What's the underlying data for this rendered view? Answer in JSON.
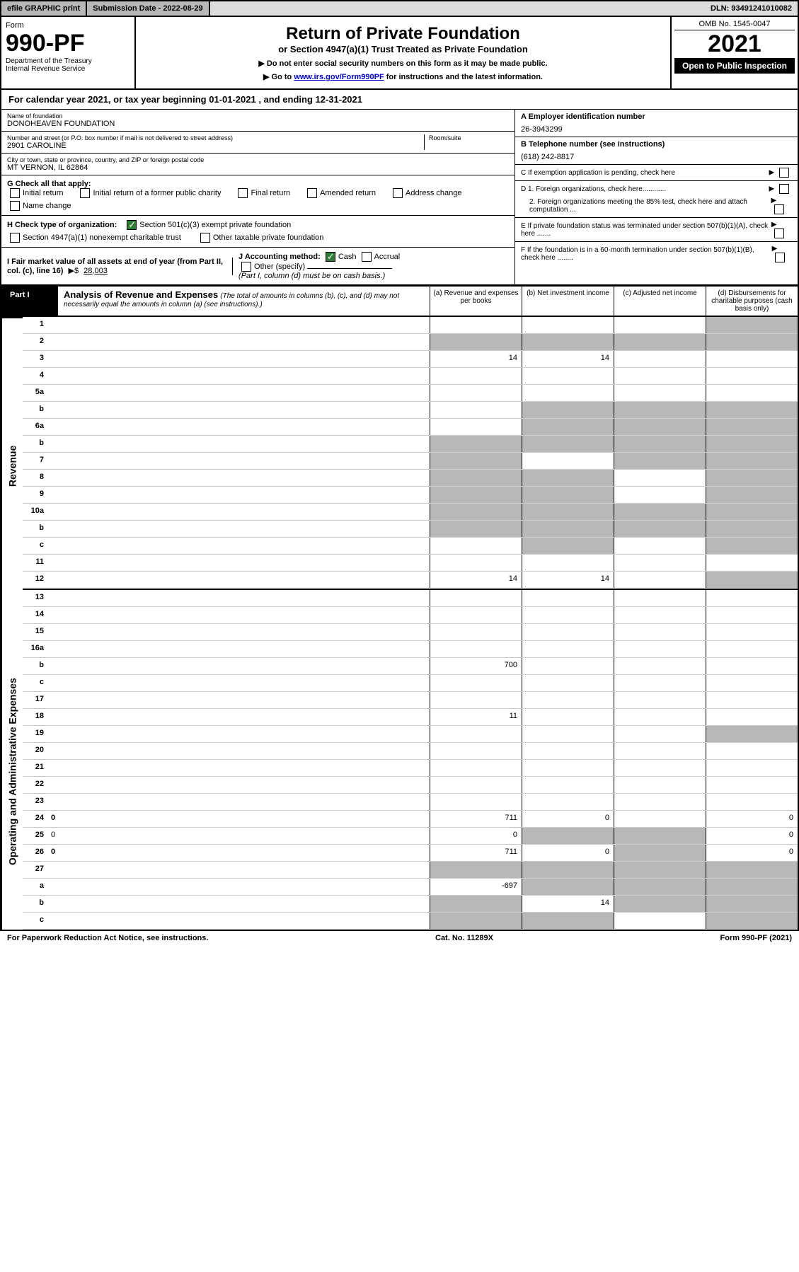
{
  "topbar": {
    "efile": "efile GRAPHIC print",
    "subdate_label": "Submission Date - 2022-08-29",
    "dln": "DLN: 93491241010082"
  },
  "header": {
    "form_word": "Form",
    "form_no": "990-PF",
    "dept": "Department of the Treasury\nInternal Revenue Service",
    "title": "Return of Private Foundation",
    "subtitle": "or Section 4947(a)(1) Trust Treated as Private Foundation",
    "instr1": "▶ Do not enter social security numbers on this form as it may be made public.",
    "instr2_pre": "▶ Go to ",
    "instr2_link": "www.irs.gov/Form990PF",
    "instr2_post": " for instructions and the latest information.",
    "omb": "OMB No. 1545-0047",
    "year": "2021",
    "open": "Open to Public Inspection"
  },
  "calyear": "For calendar year 2021, or tax year beginning 01-01-2021           , and ending 12-31-2021",
  "foundation": {
    "name_label": "Name of foundation",
    "name": "DONOHEAVEN FOUNDATION",
    "addr_label": "Number and street (or P.O. box number if mail is not delivered to street address)",
    "addr": "2901 CAROLINE",
    "room_label": "Room/suite",
    "city_label": "City or town, state or province, country, and ZIP or foreign postal code",
    "city": "MT VERNON, IL  62864",
    "ein_label": "A Employer identification number",
    "ein": "26-3943299",
    "phone_label": "B Telephone number (see instructions)",
    "phone": "(618) 242-8817",
    "c_label": "C If exemption application is pending, check here",
    "d1": "D 1. Foreign organizations, check here............",
    "d2": "2. Foreign organizations meeting the 85% test, check here and attach computation ...",
    "e_label": "E  If private foundation status was terminated under section 507(b)(1)(A), check here .......",
    "f_label": "F  If the foundation is in a 60-month termination under section 507(b)(1)(B), check here ........"
  },
  "g": {
    "label": "G Check all that apply:",
    "opts": [
      "Initial return",
      "Initial return of a former public charity",
      "Final return",
      "Amended return",
      "Address change",
      "Name change"
    ]
  },
  "h": {
    "label": "H Check type of organization:",
    "opt1": "Section 501(c)(3) exempt private foundation",
    "opt2": "Section 4947(a)(1) nonexempt charitable trust",
    "opt3": "Other taxable private foundation"
  },
  "i": {
    "label": "I Fair market value of all assets at end of year (from Part II, col. (c), line 16)",
    "arrow": "▶$",
    "value": "28,003"
  },
  "j": {
    "label": "J Accounting method:",
    "cash": "Cash",
    "accrual": "Accrual",
    "other": "Other (specify)",
    "note": "(Part I, column (d) must be on cash basis.)"
  },
  "part1": {
    "label": "Part I",
    "title": "Analysis of Revenue and Expenses",
    "sub": "(The total of amounts in columns (b), (c), and (d) may not necessarily equal the amounts in column (a) (see instructions).)",
    "col_a": "(a)   Revenue and expenses per books",
    "col_b": "(b)   Net investment income",
    "col_c": "(c)  Adjusted net income",
    "col_d": "(d)  Disbursements for charitable purposes (cash basis only)"
  },
  "side_labels": {
    "revenue": "Revenue",
    "expenses": "Operating and Administrative Expenses"
  },
  "rows": [
    {
      "n": "1",
      "d": "",
      "a": "",
      "b": "",
      "c": "",
      "sd": true
    },
    {
      "n": "2",
      "d": "",
      "a": "",
      "b": "",
      "c": "",
      "sd": true,
      "shade_all": true
    },
    {
      "n": "3",
      "d": "",
      "a": "14",
      "b": "14",
      "c": ""
    },
    {
      "n": "4",
      "d": "",
      "a": "",
      "b": "",
      "c": ""
    },
    {
      "n": "5a",
      "d": "",
      "a": "",
      "b": "",
      "c": ""
    },
    {
      "n": "b",
      "d": "",
      "a": "",
      "b": "",
      "c": "",
      "shade_bcd": true
    },
    {
      "n": "6a",
      "d": "",
      "a": "",
      "b": "",
      "c": "",
      "shade_bcd": true
    },
    {
      "n": "b",
      "d": "",
      "a": "",
      "b": "",
      "c": "",
      "shade_all": true
    },
    {
      "n": "7",
      "d": "",
      "a": "",
      "b": "",
      "c": "",
      "shade_a": true,
      "shade_cd": true
    },
    {
      "n": "8",
      "d": "",
      "a": "",
      "b": "",
      "c": "",
      "shade_ab": true,
      "shade_d": true
    },
    {
      "n": "9",
      "d": "",
      "a": "",
      "b": "",
      "c": "",
      "shade_ab": true,
      "shade_d": true
    },
    {
      "n": "10a",
      "d": "",
      "a": "",
      "b": "",
      "c": "",
      "shade_all": true
    },
    {
      "n": "b",
      "d": "",
      "a": "",
      "b": "",
      "c": "",
      "shade_all": true
    },
    {
      "n": "c",
      "d": "",
      "a": "",
      "b": "",
      "c": "",
      "shade_b": true,
      "shade_d": true
    },
    {
      "n": "11",
      "d": "",
      "a": "",
      "b": "",
      "c": ""
    },
    {
      "n": "12",
      "d": "",
      "a": "14",
      "b": "14",
      "c": "",
      "bold": true,
      "sd": true
    }
  ],
  "exp_rows": [
    {
      "n": "13",
      "d": "",
      "a": "",
      "b": "",
      "c": ""
    },
    {
      "n": "14",
      "d": "",
      "a": "",
      "b": "",
      "c": ""
    },
    {
      "n": "15",
      "d": "",
      "a": "",
      "b": "",
      "c": ""
    },
    {
      "n": "16a",
      "d": "",
      "a": "",
      "b": "",
      "c": ""
    },
    {
      "n": "b",
      "d": "",
      "a": "700",
      "b": "",
      "c": ""
    },
    {
      "n": "c",
      "d": "",
      "a": "",
      "b": "",
      "c": ""
    },
    {
      "n": "17",
      "d": "",
      "a": "",
      "b": "",
      "c": ""
    },
    {
      "n": "18",
      "d": "",
      "a": "11",
      "b": "",
      "c": ""
    },
    {
      "n": "19",
      "d": "",
      "a": "",
      "b": "",
      "c": "",
      "shade_d": true
    },
    {
      "n": "20",
      "d": "",
      "a": "",
      "b": "",
      "c": ""
    },
    {
      "n": "21",
      "d": "",
      "a": "",
      "b": "",
      "c": ""
    },
    {
      "n": "22",
      "d": "",
      "a": "",
      "b": "",
      "c": ""
    },
    {
      "n": "23",
      "d": "",
      "a": "",
      "b": "",
      "c": ""
    },
    {
      "n": "24",
      "d": "0",
      "a": "711",
      "b": "0",
      "c": "",
      "bold": true
    },
    {
      "n": "25",
      "d": "0",
      "a": "0",
      "b": "",
      "c": "",
      "shade_bc": true
    },
    {
      "n": "26",
      "d": "0",
      "a": "711",
      "b": "0",
      "c": "",
      "bold": true,
      "shade_c": true
    },
    {
      "n": "27",
      "d": "",
      "a": "",
      "b": "",
      "c": "",
      "shade_all": true
    },
    {
      "n": "a",
      "d": "",
      "a": "-697",
      "b": "",
      "c": "",
      "bold": true,
      "shade_bcd": true
    },
    {
      "n": "b",
      "d": "",
      "a": "",
      "b": "14",
      "c": "",
      "bold": true,
      "shade_a": true,
      "shade_cd": true
    },
    {
      "n": "c",
      "d": "",
      "a": "",
      "b": "",
      "c": "",
      "bold": true,
      "shade_ab": true,
      "shade_d": true
    }
  ],
  "footer": {
    "left": "For Paperwork Reduction Act Notice, see instructions.",
    "mid": "Cat. No. 11289X",
    "right": "Form 990-PF (2021)"
  }
}
